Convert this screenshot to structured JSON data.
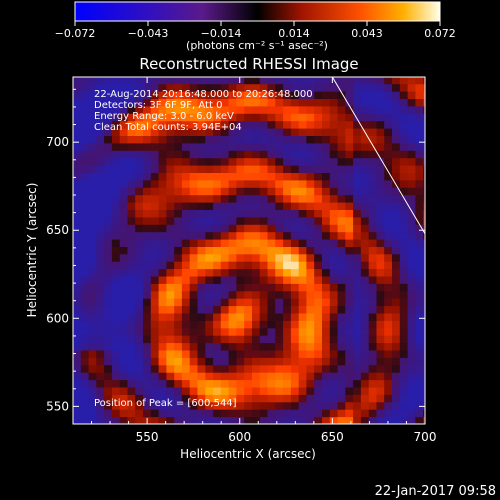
{
  "chart_data": {
    "type": "heatmap",
    "title": "Reconstructed RHESSI Image",
    "xlabel": "Heliocentric X (arcsec)",
    "ylabel": "Heliocentric Y (arcsec)",
    "xlim": [
      510,
      700
    ],
    "ylim": [
      540,
      737
    ],
    "x_ticks": [
      "550",
      "600",
      "650",
      "700"
    ],
    "y_ticks": [
      "550",
      "600",
      "650",
      "700"
    ],
    "colorbar": {
      "range": [
        -0.072,
        0.072
      ],
      "ticks": [
        "−0.072",
        "−0.043",
        "−0.014",
        "0.014",
        "0.043",
        "0.072"
      ],
      "units_label": "(photons cm⁻² s⁻¹ asec⁻²)"
    },
    "annotations": [
      "22-Aug-2014 20:16:48.000 to 20:26:48.000",
      "Detectors: 3F 6F 9F, Att 0",
      "Energy Range: 3.0 - 6.0 keV",
      "Clean    Total counts: 3.94E+04"
    ],
    "peak_label": "Position of Peak = [600,544]",
    "peak": [
      600,
      544
    ],
    "limb_line": [
      [
        650,
        737
      ],
      [
        700,
        648
      ]
    ],
    "colors": {
      "low": "#0000ff",
      "mid_low": "#7a2a9e",
      "zero": "#000000",
      "mid": "#c81e00",
      "high": "#ff9a00",
      "max": "#ffffe0"
    }
  },
  "footer": {
    "timestamp": "22-Jan-2017 09:58"
  }
}
